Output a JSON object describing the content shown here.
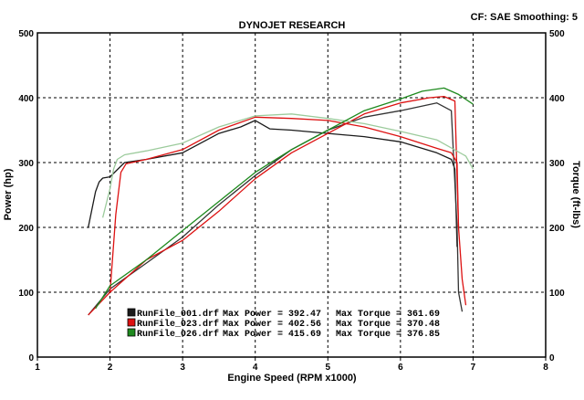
{
  "header": {
    "title": "DYNOJET RESEARCH",
    "settings": "CF: SAE  Smoothing: 5"
  },
  "colors": {
    "RunFile_001": "#1a1a1a",
    "RunFile_023": "#dd1111",
    "RunFile_026": "#1e8a1e",
    "RunFile_026_power": "#9ccb9c",
    "RunFile_001_power": "#333333"
  },
  "chart_data": {
    "type": "line",
    "title": "DYNOJET RESEARCH",
    "xlabel": "Engine Speed (RPM x1000)",
    "ylabel": "Power (hp)",
    "y2label": "Torque (ft-lbs)",
    "xlim": [
      1,
      8
    ],
    "ylim": [
      0,
      500
    ],
    "y2lim": [
      0,
      500
    ],
    "x_ticks": [
      "1",
      "2",
      "3",
      "4",
      "5",
      "6",
      "7",
      "8"
    ],
    "y_ticks": [
      "0",
      "100",
      "200",
      "300",
      "400",
      "500"
    ],
    "y2_ticks": [
      "0",
      "100",
      "200",
      "300",
      "400",
      "500"
    ],
    "grid": true,
    "legend_position": "bottom-left",
    "legend": [
      {
        "file": "RunFile_001.drf",
        "power_label": "Max Power = 392.47",
        "torque_label": "Max Torque = 361.69",
        "color_key": "RunFile_001"
      },
      {
        "file": "RunFile_023.drf",
        "power_label": "Max Power = 402.56",
        "torque_label": "Max Torque = 370.48",
        "color_key": "RunFile_023"
      },
      {
        "file": "RunFile_026.drf",
        "power_label": "Max Power = 415.69",
        "torque_label": "Max Torque = 376.85",
        "color_key": "RunFile_026"
      }
    ],
    "series": [
      {
        "run": "RunFile_001.drf",
        "quantity": "Torque",
        "color_key": "RunFile_001",
        "x": [
          1.7,
          1.8,
          1.85,
          1.9,
          2.0,
          2.2,
          2.5,
          3.0,
          3.5,
          3.8,
          4.0,
          4.2,
          4.5,
          5.0,
          5.5,
          6.0,
          6.5,
          6.7,
          6.75,
          6.78
        ],
        "y": [
          200,
          255,
          270,
          276,
          278,
          300,
          305,
          315,
          345,
          355,
          365,
          352,
          350,
          345,
          340,
          332,
          315,
          305,
          290,
          170
        ]
      },
      {
        "run": "RunFile_001.drf",
        "quantity": "Power",
        "color_key": "RunFile_001_power",
        "x": [
          1.7,
          2.0,
          2.5,
          3.0,
          3.5,
          4.0,
          4.5,
          5.0,
          5.5,
          6.0,
          6.5,
          6.7,
          6.78,
          6.8,
          6.85
        ],
        "y": [
          65,
          105,
          145,
          185,
          235,
          280,
          320,
          350,
          370,
          380,
          392,
          380,
          200,
          100,
          70
        ]
      },
      {
        "run": "RunFile_023.drf",
        "quantity": "Torque",
        "color_key": "RunFile_023",
        "x": [
          2.0,
          2.08,
          2.15,
          2.22,
          2.3,
          2.5,
          3.0,
          3.5,
          4.0,
          4.5,
          5.0,
          5.5,
          6.0,
          6.5,
          6.7,
          6.78,
          6.8
        ],
        "y": [
          100,
          220,
          285,
          298,
          300,
          305,
          320,
          350,
          370,
          368,
          365,
          355,
          340,
          322,
          315,
          300,
          200
        ]
      },
      {
        "run": "RunFile_023.drf",
        "quantity": "Power",
        "color_key": "RunFile_023",
        "x": [
          1.7,
          2.0,
          2.5,
          3.0,
          3.5,
          4.0,
          4.5,
          5.0,
          5.5,
          6.0,
          6.4,
          6.6,
          6.75,
          6.8,
          6.85,
          6.9
        ],
        "y": [
          65,
          100,
          150,
          180,
          225,
          275,
          315,
          345,
          375,
          392,
          400,
          402,
          395,
          200,
          120,
          80
        ]
      },
      {
        "run": "RunFile_026.drf",
        "quantity": "Torque",
        "color_key": "RunFile_026_power",
        "x": [
          1.9,
          2.0,
          2.05,
          2.1,
          2.2,
          2.5,
          3.0,
          3.5,
          4.0,
          4.5,
          5.0,
          5.5,
          6.0,
          6.5,
          6.9,
          7.0
        ],
        "y": [
          215,
          260,
          290,
          305,
          312,
          318,
          330,
          355,
          372,
          375,
          368,
          360,
          348,
          335,
          310,
          290
        ]
      },
      {
        "run": "RunFile_026.drf",
        "quantity": "Power",
        "color_key": "RunFile_026",
        "x": [
          1.8,
          2.0,
          2.5,
          3.0,
          3.5,
          4.0,
          4.5,
          5.0,
          5.5,
          6.0,
          6.3,
          6.6,
          6.8,
          7.0
        ],
        "y": [
          75,
          110,
          150,
          195,
          240,
          285,
          320,
          350,
          380,
          398,
          410,
          415,
          405,
          390
        ]
      }
    ]
  }
}
